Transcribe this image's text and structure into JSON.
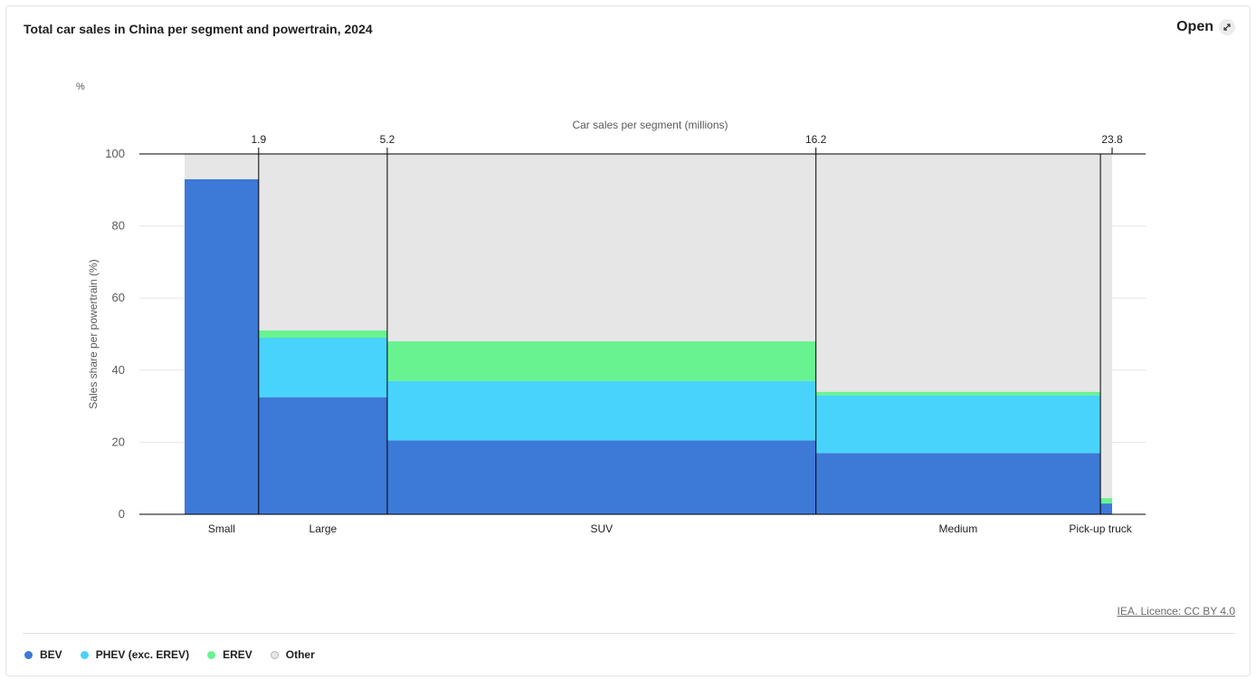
{
  "header": {
    "title": "Total car sales in China per segment and powertrain, 2024",
    "open_label": "Open",
    "open_icon": "expand-arrow-icon"
  },
  "footer": {
    "licence": "IEA. Licence: CC BY 4.0"
  },
  "chart_data": {
    "type": "marimekko",
    "title": "Total car sales in China per segment and powertrain, 2024",
    "unit_label": "%",
    "ylabel": "Sales share per powertrain (%)",
    "top_axis_label": "Car sales per segment (millions)",
    "ylim": [
      0,
      100
    ],
    "yticks": [
      0,
      20,
      40,
      60,
      80,
      100
    ],
    "xlim": [
      0,
      23.8
    ],
    "segments": [
      {
        "name": "Small",
        "start": 0,
        "end": 1.9,
        "end_label": "1.9"
      },
      {
        "name": "Large",
        "start": 1.9,
        "end": 5.2,
        "end_label": "5.2"
      },
      {
        "name": "SUV",
        "start": 5.2,
        "end": 16.2,
        "end_label": "16.2"
      },
      {
        "name": "Medium",
        "start": 16.2,
        "end": 23.5,
        "end_label": ""
      },
      {
        "name": "Pick-up truck",
        "start": 23.5,
        "end": 23.8,
        "end_label": "23.8"
      }
    ],
    "series": [
      {
        "name": "BEV",
        "color": "#3d79d6",
        "values": [
          93,
          32.5,
          20.5,
          17,
          3
        ]
      },
      {
        "name": "PHEV (exc. EREV)",
        "color": "#48d3fd",
        "values": [
          0,
          16.5,
          16.5,
          16,
          0
        ]
      },
      {
        "name": "EREV",
        "color": "#68f390",
        "values": [
          0,
          2,
          11,
          1,
          1.5
        ]
      },
      {
        "name": "Other",
        "color": "#e6e6e6",
        "values": [
          7,
          49,
          52,
          66,
          95.5
        ]
      }
    ],
    "grid": true,
    "legend": "bottom-left"
  },
  "legend": [
    {
      "label": "BEV",
      "color": "#3d79d6"
    },
    {
      "label": "PHEV (exc. EREV)",
      "color": "#48d3fd"
    },
    {
      "label": "EREV",
      "color": "#68f390"
    },
    {
      "label": "Other",
      "color": "#e6e6e6"
    }
  ]
}
